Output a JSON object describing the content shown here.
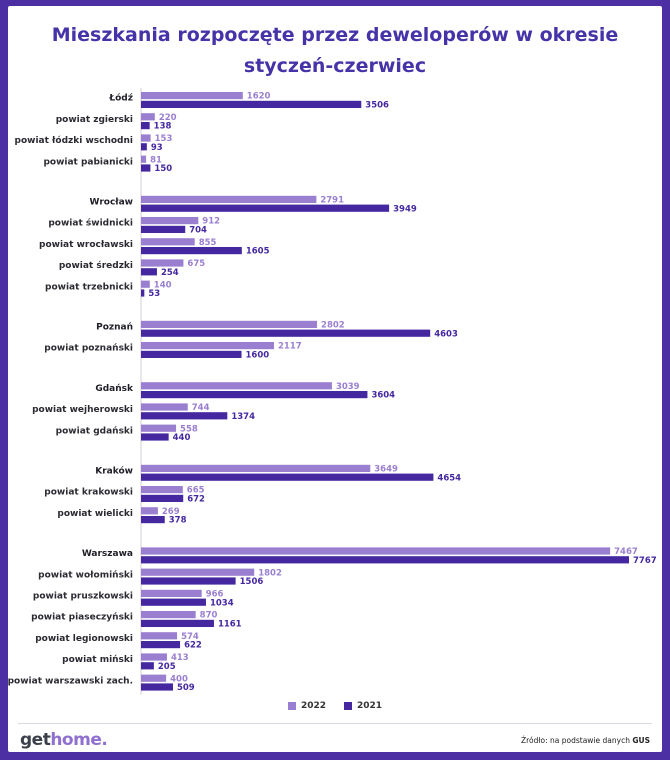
{
  "title_line1": "Mieszkania rozpoczęte przez deweloperów w okresie",
  "title_line2": "styczeń-czerwiec",
  "colors": {
    "y2022": "#9a7fd0",
    "y2021": "#4528a0",
    "frame": "#4b2fa3"
  },
  "chart_data": {
    "type": "bar",
    "orientation": "horizontal",
    "series": [
      {
        "name": "2022",
        "color": "#9a7fd0"
      },
      {
        "name": "2021",
        "color": "#4528a0"
      }
    ],
    "groups": [
      {
        "rows": [
          {
            "label": "Łódź",
            "bold": true,
            "v2022": 1620,
            "v2021": 3506
          },
          {
            "label": "powiat zgierski",
            "v2022": 220,
            "v2021": 138
          },
          {
            "label": "powiat łódzki wschodni",
            "v2022": 153,
            "v2021": 93
          },
          {
            "label": "powiat pabianicki",
            "v2022": 81,
            "v2021": 150
          }
        ]
      },
      {
        "rows": [
          {
            "label": "Wrocław",
            "bold": true,
            "v2022": 2791,
            "v2021": 3949
          },
          {
            "label": "powiat świdnicki",
            "v2022": 912,
            "v2021": 704
          },
          {
            "label": "powiat wrocławski",
            "v2022": 855,
            "v2021": 1605
          },
          {
            "label": "powiat średzki",
            "v2022": 675,
            "v2021": 254
          },
          {
            "label": "powiat trzebnicki",
            "v2022": 140,
            "v2021": 53
          }
        ]
      },
      {
        "rows": [
          {
            "label": "Poznań",
            "bold": true,
            "v2022": 2802,
            "v2021": 4603
          },
          {
            "label": "powiat poznański",
            "v2022": 2117,
            "v2021": 1600
          }
        ]
      },
      {
        "rows": [
          {
            "label": "Gdańsk",
            "bold": true,
            "v2022": 3039,
            "v2021": 3604
          },
          {
            "label": "powiat wejherowski",
            "v2022": 744,
            "v2021": 1374
          },
          {
            "label": "powiat gdański",
            "v2022": 558,
            "v2021": 440
          }
        ]
      },
      {
        "rows": [
          {
            "label": "Kraków",
            "bold": true,
            "v2022": 3649,
            "v2021": 4654
          },
          {
            "label": "powiat krakowski",
            "v2022": 665,
            "v2021": 672
          },
          {
            "label": "powiat wielicki",
            "v2022": 269,
            "v2021": 378
          }
        ]
      },
      {
        "rows": [
          {
            "label": "Warszawa",
            "bold": true,
            "v2022": 7467,
            "v2021": 7767
          },
          {
            "label": "powiat wołomiński",
            "v2022": 1802,
            "v2021": 1506
          },
          {
            "label": "powiat pruszkowski",
            "v2022": 966,
            "v2021": 1034
          },
          {
            "label": "powiat piaseczyński",
            "v2022": 870,
            "v2021": 1161
          },
          {
            "label": "powiat legionowski",
            "v2022": 574,
            "v2021": 622
          },
          {
            "label": "powiat miński",
            "v2022": 413,
            "v2021": 205
          },
          {
            "label": "powiat warszawski zach.",
            "v2022": 400,
            "v2021": 509
          }
        ]
      }
    ],
    "xlim": [
      0,
      7767
    ],
    "legend": {
      "position": "bottom-center",
      "labels": [
        "2022",
        "2021"
      ]
    }
  },
  "footer": {
    "logo_part1": "get",
    "logo_part2": "home.",
    "source_prefix": "Źródło: na podstawie danych ",
    "source_bold": "GUS"
  }
}
